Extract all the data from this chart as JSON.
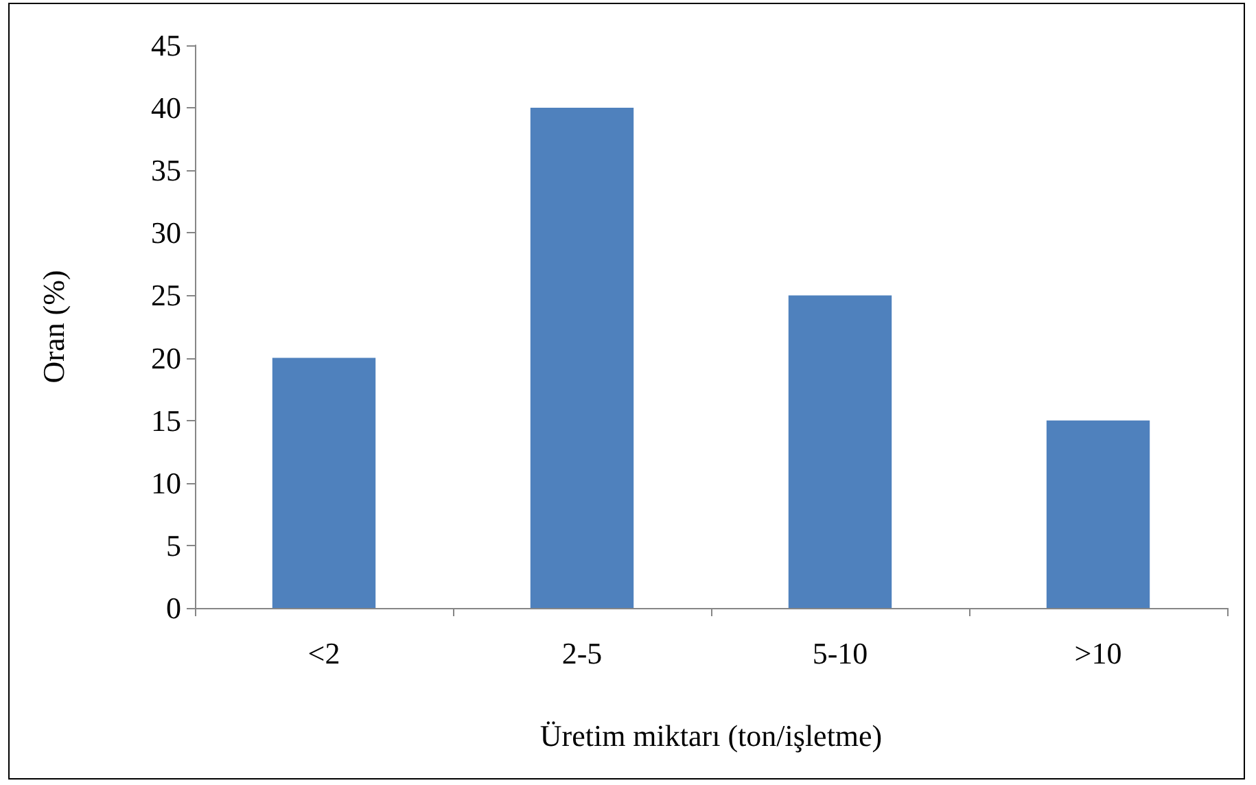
{
  "chart_data": {
    "type": "bar",
    "xlabel": "Üretim miktarı (ton/işletme)",
    "ylabel": "Oran (%)",
    "categories": [
      "<2",
      "2-5",
      "5-10",
      ">10"
    ],
    "values": [
      20,
      40,
      25,
      15
    ],
    "color": "#4f81bd",
    "ylim": [
      0,
      45
    ],
    "yticks": [
      0,
      5,
      10,
      15,
      20,
      25,
      30,
      35,
      40,
      45
    ],
    "grid": false
  }
}
